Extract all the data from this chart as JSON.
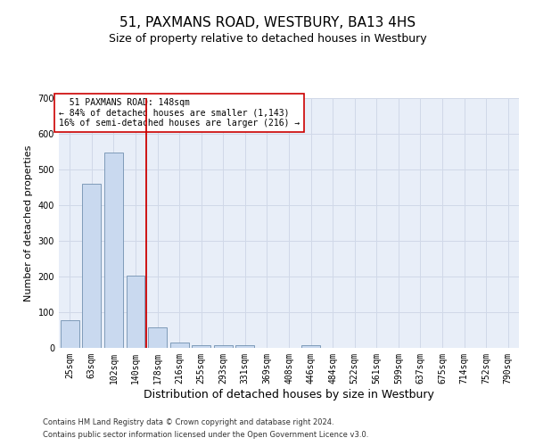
{
  "title": "51, PAXMANS ROAD, WESTBURY, BA13 4HS",
  "subtitle": "Size of property relative to detached houses in Westbury",
  "xlabel": "Distribution of detached houses by size in Westbury",
  "ylabel": "Number of detached properties",
  "footer1": "Contains HM Land Registry data © Crown copyright and database right 2024.",
  "footer2": "Contains public sector information licensed under the Open Government Licence v3.0.",
  "categories": [
    "25sqm",
    "63sqm",
    "102sqm",
    "140sqm",
    "178sqm",
    "216sqm",
    "255sqm",
    "293sqm",
    "331sqm",
    "369sqm",
    "408sqm",
    "446sqm",
    "484sqm",
    "522sqm",
    "561sqm",
    "599sqm",
    "637sqm",
    "675sqm",
    "714sqm",
    "752sqm",
    "790sqm"
  ],
  "values": [
    78,
    460,
    548,
    203,
    57,
    14,
    8,
    8,
    8,
    0,
    0,
    8,
    0,
    0,
    0,
    0,
    0,
    0,
    0,
    0,
    0
  ],
  "bar_color": "#c9d9ef",
  "bar_edge_color": "#7090b0",
  "vline_color": "#cc0000",
  "annotation_text": "  51 PAXMANS ROAD: 148sqm\n← 84% of detached houses are smaller (1,143)\n16% of semi-detached houses are larger (216) →",
  "annotation_box_color": "#ffffff",
  "annotation_box_edge": "#cc0000",
  "ylim": [
    0,
    700
  ],
  "yticks": [
    0,
    100,
    200,
    300,
    400,
    500,
    600,
    700
  ],
  "grid_color": "#d0d8e8",
  "background_color": "#e8eef8",
  "title_fontsize": 11,
  "subtitle_fontsize": 9,
  "xlabel_fontsize": 9,
  "ylabel_fontsize": 8,
  "tick_fontsize": 7,
  "annot_fontsize": 7,
  "footer_fontsize": 6
}
